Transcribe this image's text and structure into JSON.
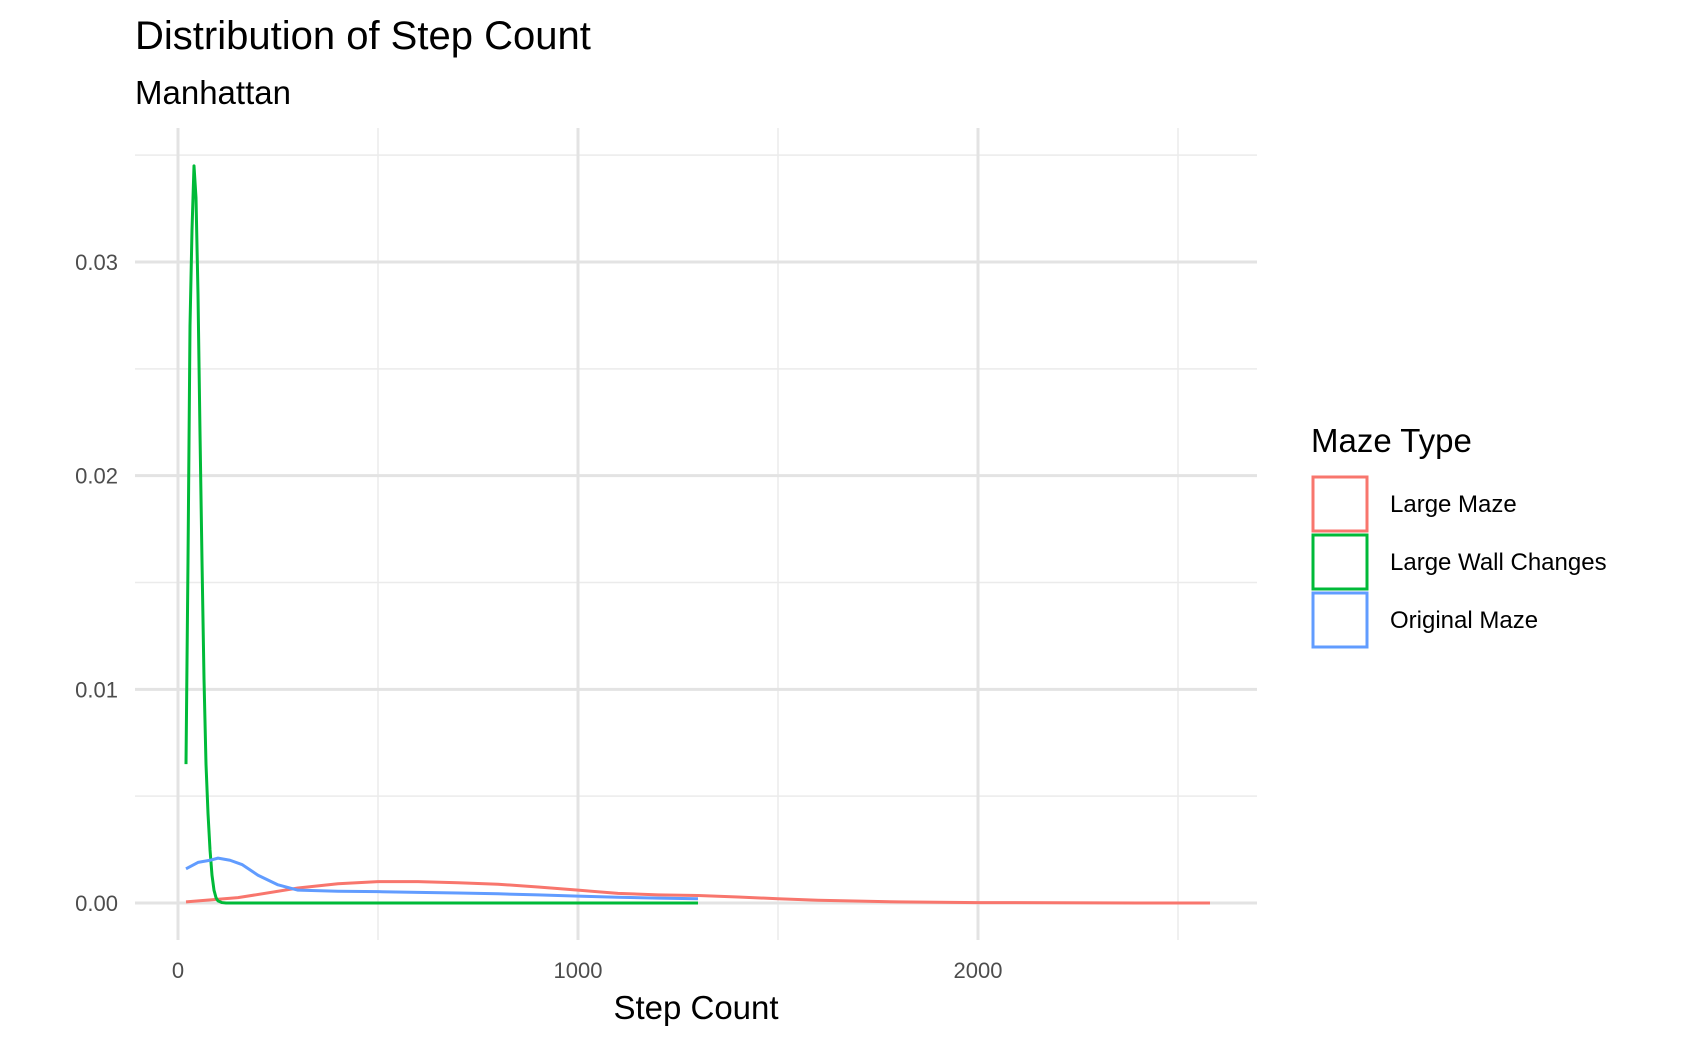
{
  "chart_data": {
    "type": "line",
    "title": "Distribution of Step Count",
    "subtitle": "Manhattan",
    "xlabel": "Step Count",
    "ylabel": "",
    "xlim": [
      -100,
      2700
    ],
    "ylim": [
      -0.0017,
      0.0352
    ],
    "x_ticks": [
      0,
      1000,
      2000
    ],
    "x_tick_labels": [
      "0",
      "1000",
      "2000"
    ],
    "x_minor_ticks": [
      500,
      1500,
      2500
    ],
    "y_ticks": [
      0.0,
      0.01,
      0.02,
      0.03
    ],
    "y_tick_labels": [
      "0.00",
      "0.01",
      "0.02",
      "0.03"
    ],
    "y_minor_ticks": [
      0.005,
      0.015,
      0.025,
      0.035
    ],
    "grid": true,
    "legend": {
      "title": "Maze Type",
      "position": "right"
    },
    "series": [
      {
        "name": "Large Maze",
        "color": "#F8766D",
        "x": [
          20,
          150,
          300,
          400,
          500,
          600,
          700,
          800,
          900,
          1000,
          1100,
          1200,
          1300,
          1400,
          1500,
          1600,
          1800,
          2000,
          2200,
          2400,
          2580
        ],
        "y": [
          5e-05,
          0.00025,
          0.0007,
          0.0009,
          0.001,
          0.001,
          0.00095,
          0.00088,
          0.00075,
          0.0006,
          0.00045,
          0.00038,
          0.00035,
          0.00028,
          0.0002,
          0.00013,
          5e-05,
          2e-05,
          1e-05,
          0.0,
          0.0
        ]
      },
      {
        "name": "Large Wall Changes",
        "color": "#00BA38",
        "x": [
          20,
          25,
          30,
          35,
          40,
          45,
          50,
          55,
          60,
          65,
          70,
          75,
          80,
          85,
          90,
          95,
          100,
          110,
          120,
          150,
          200,
          300,
          500,
          800,
          1100,
          1300
        ],
        "y": [
          0.0065,
          0.016,
          0.027,
          0.0315,
          0.0345,
          0.033,
          0.0285,
          0.022,
          0.016,
          0.0105,
          0.0065,
          0.0042,
          0.0025,
          0.0013,
          0.0006,
          0.00025,
          0.0001,
          2e-05,
          0.0,
          0.0,
          0.0,
          0.0,
          0.0,
          0.0,
          0.0,
          0.0
        ]
      },
      {
        "name": "Original Maze",
        "color": "#619CFF",
        "x": [
          20,
          50,
          80,
          100,
          130,
          160,
          200,
          250,
          300,
          400,
          500,
          600,
          700,
          800,
          900,
          1000,
          1100,
          1200,
          1300
        ],
        "y": [
          0.0016,
          0.0019,
          0.002,
          0.0021,
          0.002,
          0.0018,
          0.0013,
          0.00085,
          0.0006,
          0.00055,
          0.00053,
          0.0005,
          0.00047,
          0.00043,
          0.00038,
          0.00032,
          0.00027,
          0.00023,
          0.0002
        ]
      }
    ]
  }
}
